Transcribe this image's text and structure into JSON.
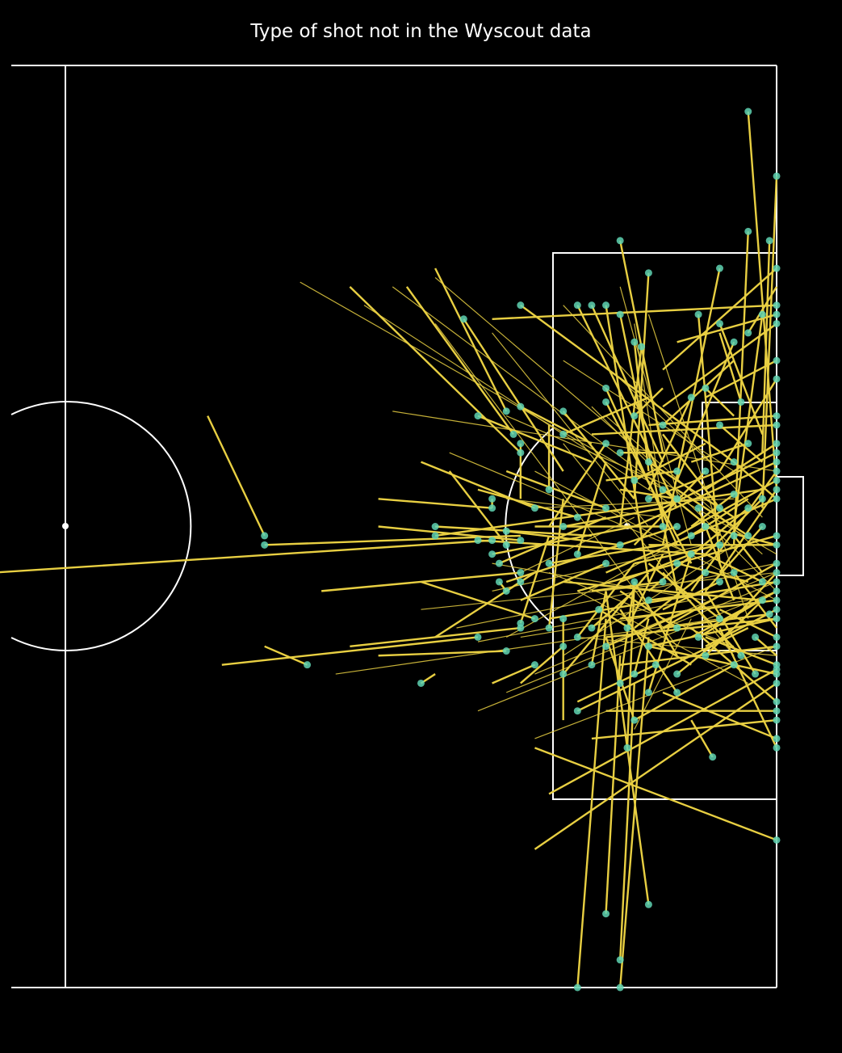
{
  "chart_data": {
    "type": "scatter",
    "title": "Type of shot not in the Wyscout data",
    "subtitle": "",
    "xlabel": "",
    "ylabel": "",
    "pitch": {
      "units": "Wyscout 0-100",
      "view": "attacking half, attacking right",
      "xlim": [
        50,
        100
      ],
      "ylim": [
        0,
        100
      ]
    },
    "colors": {
      "background": "#000000",
      "lines": "#ffffff",
      "shot_line": "#e8cf42",
      "shot_point": "#5fd3b3"
    },
    "shots": [
      {
        "x": 98,
        "y": 5,
        "ex": 100,
        "ey": 46
      },
      {
        "x": 100,
        "y": 12,
        "ex": 99,
        "ey": 48
      },
      {
        "x": 98,
        "y": 18,
        "ex": 97,
        "ey": 52
      },
      {
        "x": 99.5,
        "y": 19,
        "ex": 99,
        "ey": 42
      },
      {
        "x": 89,
        "y": 19,
        "ex": 92,
        "ey": 42
      },
      {
        "x": 91,
        "y": 22.5,
        "ex": 90,
        "ey": 47
      },
      {
        "x": 96,
        "y": 22,
        "ex": 92,
        "ey": 52
      },
      {
        "x": 82,
        "y": 26,
        "ex": 97,
        "ey": 43
      },
      {
        "x": 86,
        "y": 26,
        "ex": 93,
        "ey": 48
      },
      {
        "x": 87,
        "y": 26,
        "ex": 92,
        "ey": 43
      },
      {
        "x": 88,
        "y": 26,
        "ex": 91,
        "ey": 56
      },
      {
        "x": 89,
        "y": 27,
        "ex": 93,
        "ey": 57
      },
      {
        "x": 90,
        "y": 30,
        "ex": 91,
        "ey": 44
      },
      {
        "x": 90.5,
        "y": 30.5,
        "ex": 89,
        "ey": 50
      },
      {
        "x": 94.5,
        "y": 27,
        "ex": 96,
        "ey": 54
      },
      {
        "x": 96,
        "y": 28,
        "ex": 99,
        "ey": 40
      },
      {
        "x": 98,
        "y": 29,
        "ex": 100,
        "ey": 24
      },
      {
        "x": 99,
        "y": 27,
        "ex": 97,
        "ey": 50
      },
      {
        "x": 100,
        "y": 26,
        "ex": 80,
        "ey": 27.5
      },
      {
        "x": 100,
        "y": 27,
        "ex": 93,
        "ey": 30
      },
      {
        "x": 100,
        "y": 28,
        "ex": 92,
        "ey": 37
      },
      {
        "x": 100,
        "y": 32,
        "ex": 95,
        "ey": 36
      },
      {
        "x": 95,
        "y": 35,
        "ex": 97,
        "ey": 38
      },
      {
        "x": 97.5,
        "y": 36.5,
        "ex": 96,
        "ey": 29
      },
      {
        "x": 82,
        "y": 37,
        "ex": 87,
        "ey": 41
      },
      {
        "x": 85,
        "y": 37.5,
        "ex": 90,
        "ey": 47
      },
      {
        "x": 88,
        "y": 36.5,
        "ex": 94,
        "ey": 54
      },
      {
        "x": 90,
        "y": 38,
        "ex": 92,
        "ey": 35
      },
      {
        "x": 92,
        "y": 39,
        "ex": 97,
        "ey": 32
      },
      {
        "x": 94,
        "y": 36,
        "ex": 91,
        "ey": 46
      },
      {
        "x": 96,
        "y": 39,
        "ex": 99,
        "ey": 43
      },
      {
        "x": 98,
        "y": 41,
        "ex": 94,
        "ey": 43
      },
      {
        "x": 100,
        "y": 38,
        "ex": 91,
        "ey": 39
      },
      {
        "x": 100,
        "y": 39,
        "ex": 87,
        "ey": 40
      },
      {
        "x": 85,
        "y": 40,
        "ex": 91,
        "ey": 36
      },
      {
        "x": 88,
        "y": 41,
        "ex": 84,
        "ey": 50
      },
      {
        "x": 89,
        "y": 42,
        "ex": 93,
        "ey": 42
      },
      {
        "x": 91,
        "y": 43,
        "ex": 97,
        "ey": 49
      },
      {
        "x": 93,
        "y": 44,
        "ex": 88,
        "ey": 45
      },
      {
        "x": 95,
        "y": 44,
        "ex": 90,
        "ey": 52
      },
      {
        "x": 97,
        "y": 43,
        "ex": 100,
        "ey": 47
      },
      {
        "x": 100,
        "y": 41,
        "ex": 95,
        "ey": 46
      },
      {
        "x": 100,
        "y": 42,
        "ex": 92,
        "ey": 48
      },
      {
        "x": 100,
        "y": 43,
        "ex": 90,
        "ey": 50
      },
      {
        "x": 100,
        "y": 44,
        "ex": 94,
        "ey": 57
      },
      {
        "x": 100,
        "y": 45,
        "ex": 93,
        "ey": 51
      },
      {
        "x": 100,
        "y": 46,
        "ex": 96,
        "ey": 55
      },
      {
        "x": 100,
        "y": 47,
        "ex": 88,
        "ey": 55
      },
      {
        "x": 99,
        "y": 47,
        "ex": 95,
        "ey": 53
      },
      {
        "x": 98,
        "y": 48,
        "ex": 91,
        "ey": 57
      },
      {
        "x": 97,
        "y": 46.5,
        "ex": 94,
        "ey": 50
      },
      {
        "x": 96,
        "y": 48,
        "ex": 92,
        "ey": 40
      },
      {
        "x": 94.5,
        "y": 48,
        "ex": 97,
        "ey": 58
      },
      {
        "x": 93,
        "y": 47,
        "ex": 89,
        "ey": 46
      },
      {
        "x": 92,
        "y": 46,
        "ex": 96,
        "ey": 51
      },
      {
        "x": 91,
        "y": 47,
        "ex": 96,
        "ey": 44
      },
      {
        "x": 90,
        "y": 45,
        "ex": 95,
        "ey": 41
      },
      {
        "x": 88,
        "y": 48,
        "ex": 81,
        "ey": 44
      },
      {
        "x": 86,
        "y": 49,
        "ex": 79,
        "ey": 46
      },
      {
        "x": 83,
        "y": 48,
        "ex": 75,
        "ey": 43
      },
      {
        "x": 92,
        "y": 50,
        "ex": 83,
        "ey": 50
      },
      {
        "x": 93,
        "y": 50,
        "ex": 87,
        "ey": 53
      },
      {
        "x": 94,
        "y": 51,
        "ex": 98,
        "ey": 47
      },
      {
        "x": 95,
        "y": 50,
        "ex": 100,
        "ey": 52
      },
      {
        "x": 96,
        "y": 52,
        "ex": 90,
        "ey": 54
      },
      {
        "x": 97,
        "y": 51,
        "ex": 99,
        "ey": 55
      },
      {
        "x": 98,
        "y": 51,
        "ex": 93,
        "ey": 46
      },
      {
        "x": 99,
        "y": 50,
        "ex": 95,
        "ey": 57
      },
      {
        "x": 100,
        "y": 51,
        "ex": 86,
        "ey": 57
      },
      {
        "x": 100,
        "y": 52,
        "ex": 91,
        "ey": 52
      },
      {
        "x": 100,
        "y": 54,
        "ex": 92,
        "ey": 61
      },
      {
        "x": 100,
        "y": 55,
        "ex": 97,
        "ey": 60
      },
      {
        "x": 100,
        "y": 56,
        "ex": 84,
        "ey": 60
      },
      {
        "x": 100,
        "y": 57,
        "ex": 94,
        "ey": 62
      },
      {
        "x": 99,
        "y": 56,
        "ex": 95,
        "ey": 53
      },
      {
        "x": 99,
        "y": 58,
        "ex": 85,
        "ey": 56
      },
      {
        "x": 99.5,
        "y": 59.5,
        "ex": 92,
        "ey": 61
      },
      {
        "x": 100,
        "y": 58,
        "ex": 89,
        "ey": 60
      },
      {
        "x": 100,
        "y": 59,
        "ex": 95,
        "ey": 63
      },
      {
        "x": 100,
        "y": 60,
        "ex": 88,
        "ey": 62
      },
      {
        "x": 97,
        "y": 55,
        "ex": 100,
        "ey": 61
      },
      {
        "x": 96,
        "y": 56,
        "ex": 92,
        "ey": 59
      },
      {
        "x": 95,
        "y": 55,
        "ex": 90,
        "ey": 61
      },
      {
        "x": 94,
        "y": 53,
        "ex": 89,
        "ey": 56
      },
      {
        "x": 93,
        "y": 54,
        "ex": 98,
        "ey": 56
      },
      {
        "x": 92,
        "y": 56,
        "ex": 87,
        "ey": 57
      },
      {
        "x": 91,
        "y": 58,
        "ex": 96,
        "ey": 57
      },
      {
        "x": 90,
        "y": 56,
        "ex": 93,
        "ey": 64
      },
      {
        "x": 89,
        "y": 52,
        "ex": 81,
        "ey": 56
      },
      {
        "x": 88,
        "y": 54,
        "ex": 82,
        "ey": 58
      },
      {
        "x": 87.5,
        "y": 59,
        "ex": 94,
        "ey": 65
      },
      {
        "x": 87,
        "y": 61,
        "ex": 90,
        "ey": 57
      },
      {
        "x": 88,
        "y": 63,
        "ex": 94,
        "ey": 59
      },
      {
        "x": 89.5,
        "y": 61,
        "ex": 92,
        "ey": 53
      },
      {
        "x": 91,
        "y": 63,
        "ex": 100,
        "ey": 60
      },
      {
        "x": 93,
        "y": 61,
        "ex": 89,
        "ey": 57
      },
      {
        "x": 94.5,
        "y": 62,
        "ex": 100,
        "ey": 57
      },
      {
        "x": 96,
        "y": 60,
        "ex": 91,
        "ey": 54
      },
      {
        "x": 97.5,
        "y": 64,
        "ex": 92,
        "ey": 55
      },
      {
        "x": 98.5,
        "y": 62,
        "ex": 100,
        "ey": 64
      },
      {
        "x": 100,
        "y": 62,
        "ex": 96,
        "ey": 59
      },
      {
        "x": 100,
        "y": 63,
        "ex": 89,
        "ey": 65
      },
      {
        "x": 100,
        "y": 65,
        "ex": 95,
        "ey": 62
      },
      {
        "x": 100,
        "y": 66,
        "ex": 91,
        "ey": 63
      },
      {
        "x": 100,
        "y": 69,
        "ex": 94,
        "ey": 61
      },
      {
        "x": 100,
        "y": 71,
        "ex": 87,
        "ey": 73
      },
      {
        "x": 100,
        "y": 73,
        "ex": 92,
        "ey": 68
      },
      {
        "x": 100,
        "y": 74,
        "ex": 96,
        "ey": 61
      },
      {
        "x": 98.5,
        "y": 66,
        "ex": 95,
        "ey": 57
      },
      {
        "x": 97,
        "y": 65,
        "ex": 90,
        "ey": 71
      },
      {
        "x": 95,
        "y": 64,
        "ex": 99,
        "ey": 58
      },
      {
        "x": 93,
        "y": 66,
        "ex": 97,
        "ey": 61
      },
      {
        "x": 91.5,
        "y": 65,
        "ex": 86,
        "ey": 69
      },
      {
        "x": 90,
        "y": 66,
        "ex": 91,
        "ey": 60
      },
      {
        "x": 89,
        "y": 67,
        "ex": 90,
        "ey": 56
      },
      {
        "x": 87,
        "y": 65,
        "ex": 88,
        "ey": 57
      },
      {
        "x": 86,
        "y": 62,
        "ex": 90,
        "ey": 54
      },
      {
        "x": 85,
        "y": 63,
        "ex": 82,
        "ey": 67
      },
      {
        "x": 84,
        "y": 61,
        "ex": 85,
        "ey": 47
      },
      {
        "x": 82,
        "y": 60.5,
        "ex": 84,
        "ey": 51
      },
      {
        "x": 81,
        "y": 57,
        "ex": 83,
        "ey": 55
      },
      {
        "x": 80,
        "y": 53,
        "ex": 90,
        "ey": 50
      },
      {
        "x": 80.5,
        "y": 54,
        "ex": 88,
        "ey": 49
      },
      {
        "x": 81,
        "y": 52,
        "ex": 77,
        "ey": 44
      },
      {
        "x": 82,
        "y": 51.5,
        "ex": 72,
        "ey": 50
      },
      {
        "x": 81,
        "y": 50.5,
        "ex": 89,
        "ey": 52
      },
      {
        "x": 85,
        "y": 50,
        "ex": 92,
        "ey": 48
      },
      {
        "x": 86,
        "y": 53,
        "ex": 88,
        "ey": 43
      },
      {
        "x": 84,
        "y": 54,
        "ex": 92,
        "ey": 52
      },
      {
        "x": 79,
        "y": 51.5,
        "ex": 95,
        "ey": 53
      },
      {
        "x": 76,
        "y": 51,
        "ex": 99,
        "ey": 46
      },
      {
        "x": 76,
        "y": 50,
        "ex": 87,
        "ey": 51
      },
      {
        "x": 83,
        "y": 60,
        "ex": 75,
        "ey": 56
      },
      {
        "x": 82,
        "y": 55,
        "ex": 68,
        "ey": 57
      },
      {
        "x": 80,
        "y": 48,
        "ex": 72,
        "ey": 47
      },
      {
        "x": 81,
        "y": 37.5,
        "ex": 76,
        "ey": 22
      },
      {
        "x": 84,
        "y": 46,
        "ex": 84,
        "ey": 39
      },
      {
        "x": 81.5,
        "y": 40,
        "ex": 74,
        "ey": 24
      },
      {
        "x": 82,
        "y": 42,
        "ex": 70,
        "ey": 24
      },
      {
        "x": 78,
        "y": 27.5,
        "ex": 85,
        "ey": 44
      },
      {
        "x": 79,
        "y": 38,
        "ex": 87,
        "ey": 43
      },
      {
        "x": 82,
        "y": 41,
        "ex": 82,
        "ey": 47
      },
      {
        "x": 80,
        "y": 47,
        "ex": 80,
        "ey": 48
      },
      {
        "x": 80.5,
        "y": 56,
        "ex": 81,
        "ey": 57
      },
      {
        "x": 75,
        "y": 67,
        "ex": 76,
        "ey": 66
      },
      {
        "x": 67,
        "y": 65,
        "ex": 64,
        "ey": 63
      },
      {
        "x": 64,
        "y": 52,
        "ex": 82,
        "ey": 51
      },
      {
        "x": 64,
        "y": 51,
        "ex": 60,
        "ey": 38
      },
      {
        "x": 79,
        "y": 62,
        "ex": 61,
        "ey": 65
      },
      {
        "x": 81,
        "y": 63.5,
        "ex": 72,
        "ey": 64
      },
      {
        "x": 82,
        "y": 61,
        "ex": 70,
        "ey": 63
      },
      {
        "x": 83,
        "y": 65,
        "ex": 80,
        "ey": 67
      },
      {
        "x": 85,
        "y": 60,
        "ex": 85,
        "ey": 71
      },
      {
        "x": 82,
        "y": 56,
        "ex": 76,
        "ey": 62
      },
      {
        "x": 80,
        "y": 51.5,
        "ex": 45,
        "ey": 55
      },
      {
        "x": 89.5,
        "y": 74,
        "ex": 90,
        "ey": 56
      },
      {
        "x": 95.5,
        "y": 75,
        "ex": 94,
        "ey": 71
      },
      {
        "x": 88,
        "y": 92,
        "ex": 89,
        "ey": 64
      },
      {
        "x": 91,
        "y": 91,
        "ex": 88,
        "ey": 57
      },
      {
        "x": 89,
        "y": 97,
        "ex": 90,
        "ey": 67
      },
      {
        "x": 86,
        "y": 100,
        "ex": 88,
        "ey": 60
      },
      {
        "x": 89,
        "y": 100,
        "ex": 91,
        "ey": 62
      },
      {
        "x": 100,
        "y": 84,
        "ex": 83,
        "ey": 74
      },
      {
        "x": 100,
        "y": 65.5,
        "ex": 84,
        "ey": 79
      },
      {
        "x": 100,
        "y": 67,
        "ex": 83,
        "ey": 85
      },
      {
        "x": 100,
        "y": 70,
        "ex": 88,
        "ey": 70
      },
      {
        "x": 93,
        "y": 68,
        "ex": 89,
        "ey": 59
      },
      {
        "x": 91,
        "y": 68,
        "ex": 94,
        "ey": 53
      },
      {
        "x": 90,
        "y": 71,
        "ex": 88,
        "ey": 62
      },
      {
        "x": 86,
        "y": 70,
        "ex": 98,
        "ey": 61
      },
      {
        "x": 85,
        "y": 66,
        "ex": 91,
        "ey": 55
      },
      {
        "x": 100,
        "y": 22,
        "ex": 92,
        "ey": 33
      },
      {
        "x": 100,
        "y": 34,
        "ex": 96,
        "ey": 44
      },
      {
        "x": 97,
        "y": 30,
        "ex": 93,
        "ey": 45
      },
      {
        "x": 88,
        "y": 35,
        "ex": 93,
        "ey": 52
      }
    ],
    "faint_lines": [
      [
        73,
        24,
        93,
        47
      ],
      [
        73,
        37.5,
        100,
        44
      ],
      [
        66.5,
        23.5,
        100,
        53
      ],
      [
        71,
        26,
        93,
        48
      ],
      [
        76,
        23,
        92,
        44
      ],
      [
        81,
        47,
        92,
        49
      ],
      [
        79,
        62.5,
        94,
        58
      ],
      [
        69,
        66,
        96,
        60
      ],
      [
        77.5,
        61,
        100,
        54
      ],
      [
        81,
        68,
        100,
        56
      ],
      [
        79,
        70,
        100,
        57
      ],
      [
        85,
        64,
        97,
        52
      ],
      [
        90,
        72,
        94,
        60
      ],
      [
        75,
        59,
        100,
        55
      ],
      [
        83,
        73,
        100,
        63
      ],
      [
        86,
        62,
        100,
        64
      ],
      [
        80,
        57,
        95,
        52
      ],
      [
        82,
        62,
        98,
        58
      ],
      [
        77,
        42,
        94,
        53
      ],
      [
        87,
        37,
        100,
        57
      ],
      [
        91,
        27,
        98,
        60
      ],
      [
        89,
        24,
        94,
        52
      ],
      [
        76,
        28,
        93,
        63
      ],
      [
        83,
        44,
        100,
        58
      ],
      [
        85,
        32,
        97,
        44
      ],
      [
        88,
        38,
        99,
        53
      ],
      [
        84,
        55,
        97,
        63
      ],
      [
        86,
        57,
        98,
        67
      ],
      [
        83,
        66,
        100,
        55
      ],
      [
        81,
        62,
        95,
        50
      ],
      [
        80,
        54,
        95,
        58
      ],
      [
        82,
        55,
        90,
        49
      ],
      [
        83,
        48,
        97,
        47
      ],
      [
        81,
        38,
        93,
        46
      ],
      [
        90,
        28,
        92,
        48
      ],
      [
        89,
        34,
        96,
        44
      ],
      [
        85,
        26,
        99,
        49
      ],
      [
        80,
        29,
        91,
        50
      ],
      [
        85,
        41,
        97,
        64
      ]
    ]
  }
}
